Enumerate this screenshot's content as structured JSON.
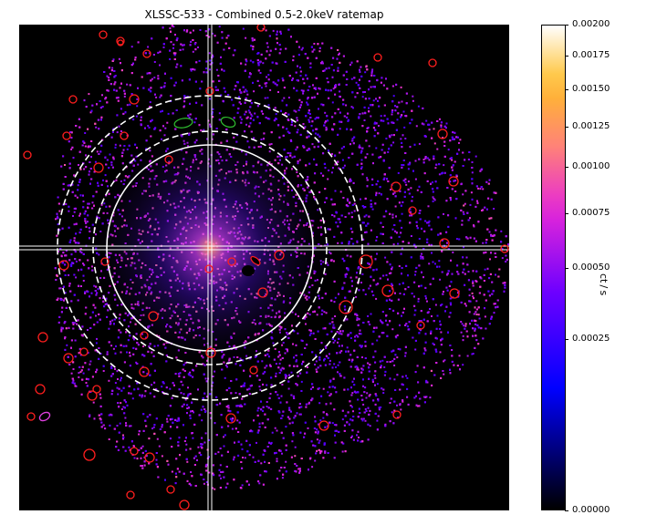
{
  "chart_data": {
    "type": "image",
    "title": "XLSSC-533 - Combined 0.5-2.0keV ratemap",
    "colorbar": {
      "label": "ct / s",
      "label_display": "ct / s",
      "scale": "sqrt",
      "range": [
        0.0,
        0.002
      ],
      "tick_labels": [
        "0.00200",
        "0.00175",
        "0.00150",
        "0.00125",
        "0.00100",
        "0.00075",
        "0.00050",
        "0.00025",
        "0.00000"
      ],
      "tick_values": [
        0.002,
        0.00175,
        0.0015,
        0.00125,
        0.001,
        0.00075,
        0.0005,
        0.00025,
        0.0
      ],
      "colormap": "gnuplot2"
    },
    "overlays": {
      "crosshair": "white double line through source centre",
      "circles": [
        "solid white circle",
        "dashed white circle",
        "dashed white circle (outer)"
      ],
      "source_regions": "red ellipses marking point sources",
      "masked_regions": "green ellipses marking extended sources"
    },
    "colors": {
      "crosshair": "#ffffff",
      "point_source": "#ff1e1e",
      "extended_source": "#30c030",
      "background": "#000000"
    }
  }
}
